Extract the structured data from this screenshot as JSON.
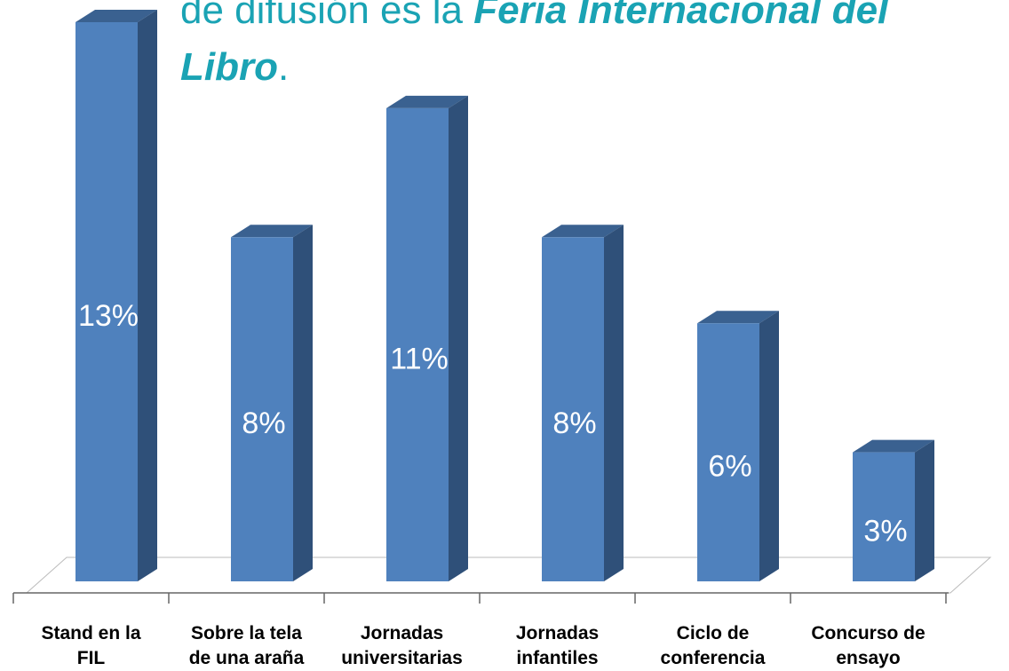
{
  "chart_data": {
    "type": "bar3d",
    "title": {
      "line1": "de difusión es la",
      "line1_emphasis": "Feria Internacional del",
      "line2_emphasis": "Libro",
      "line2_end": "."
    },
    "categories": [
      [
        "Stand en la",
        "FIL"
      ],
      [
        "Sobre la tela",
        "de una araña"
      ],
      [
        "Jornadas",
        "universitarias"
      ],
      [
        "Jornadas",
        "infantiles"
      ],
      [
        "Ciclo de",
        "conferencia"
      ],
      [
        "Concurso de",
        "ensayo"
      ]
    ],
    "values": [
      13,
      8,
      11,
      8,
      6,
      3
    ],
    "value_labels": [
      "13%",
      "8%",
      "11%",
      "8%",
      "6%",
      "3%"
    ],
    "color": "#4f81bd"
  }
}
